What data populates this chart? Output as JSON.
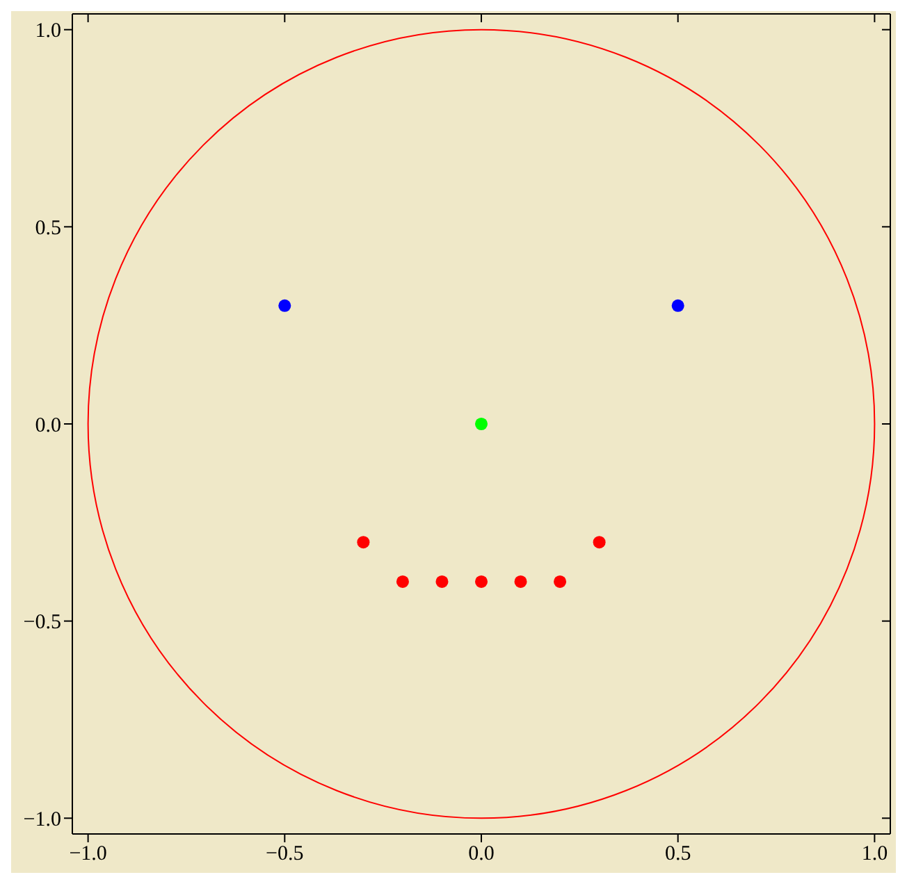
{
  "chart_data": {
    "type": "scatter",
    "marker": "circle",
    "xlim": [
      -1.04,
      1.04
    ],
    "ylim": [
      -1.04,
      1.04
    ],
    "xticks": [
      {
        "value": -1,
        "label": "−1.0"
      },
      {
        "value": -0.5,
        "label": "−0.5"
      },
      {
        "value": 0,
        "label": "0.0"
      },
      {
        "value": 0.5,
        "label": "0.5"
      },
      {
        "value": 1,
        "label": "1.0"
      }
    ],
    "yticks": [
      {
        "value": -1,
        "label": "−1.0"
      },
      {
        "value": -0.5,
        "label": "−0.5"
      },
      {
        "value": 0,
        "label": "0.0"
      },
      {
        "value": 0.5,
        "label": "0.5"
      },
      {
        "value": 1,
        "label": "1.0"
      }
    ],
    "series": [
      {
        "color": "#0000ff",
        "x": [
          -0.5,
          0.5
        ],
        "values": [
          0.3,
          0.3
        ]
      },
      {
        "color": "#00ff00",
        "x": [
          0
        ],
        "values": [
          0
        ]
      },
      {
        "color": "#ff0000",
        "x": [
          -0.3,
          -0.2,
          -0.1,
          0,
          0.1,
          0.2,
          0.3
        ],
        "values": [
          -0.3,
          -0.4,
          -0.4,
          -0.4,
          -0.4,
          -0.4,
          -0.3
        ]
      }
    ]
  }
}
